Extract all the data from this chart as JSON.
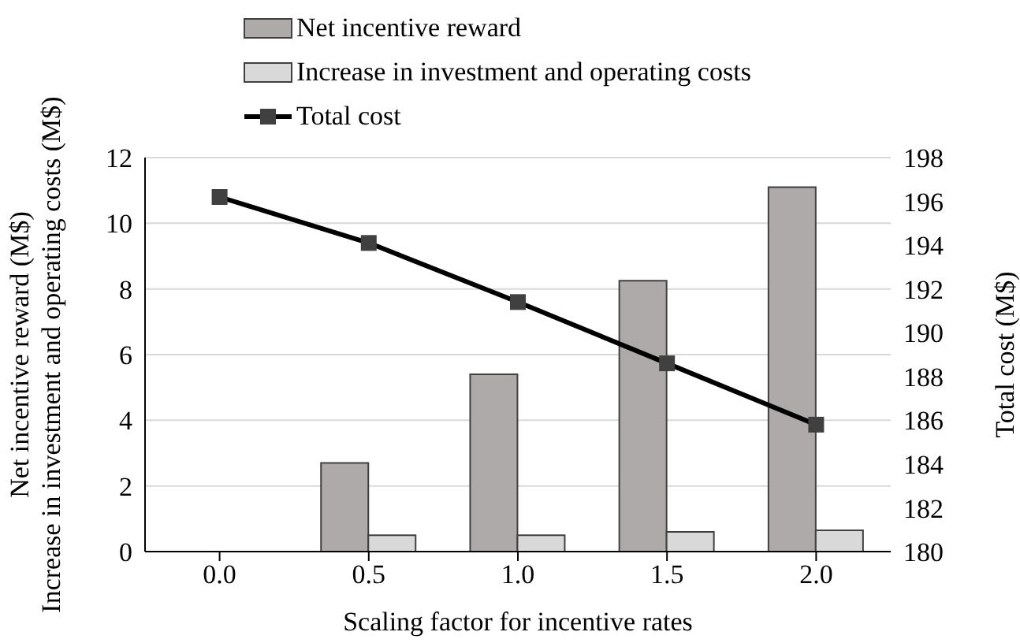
{
  "chart_data": {
    "type": "bar",
    "xlabel": "Scaling factor for incentive rates",
    "ylabel": "Net incentive reward (M$)\nIncrease in investment and operating costs (M$)",
    "y2label": "Total cost (M$)",
    "categories": [
      "0.0",
      "0.5",
      "1.0",
      "1.5",
      "2.0"
    ],
    "series": [
      {
        "name": "Net incentive reward",
        "color": "#aeaaaa",
        "values": [
          0,
          2.7,
          5.4,
          8.25,
          11.1
        ]
      },
      {
        "name": "Increase in investment and operating costs",
        "color": "#d9d9d9",
        "values": [
          0,
          0.5,
          0.5,
          0.6,
          0.65
        ]
      },
      {
        "name": "Total cost",
        "type": "line",
        "axis": "y2",
        "color": "#000000",
        "marker": "square",
        "values": [
          196.2,
          194.1,
          191.4,
          188.6,
          185.8
        ]
      }
    ],
    "ylim": [
      0,
      12
    ],
    "yticks": [
      0,
      2,
      4,
      6,
      8,
      10,
      12
    ],
    "y2lim": [
      180,
      198
    ],
    "y2ticks": [
      180,
      182,
      184,
      186,
      188,
      190,
      192,
      194,
      196,
      198
    ],
    "grid": "y",
    "legend": "top",
    "line_style": "solid"
  }
}
